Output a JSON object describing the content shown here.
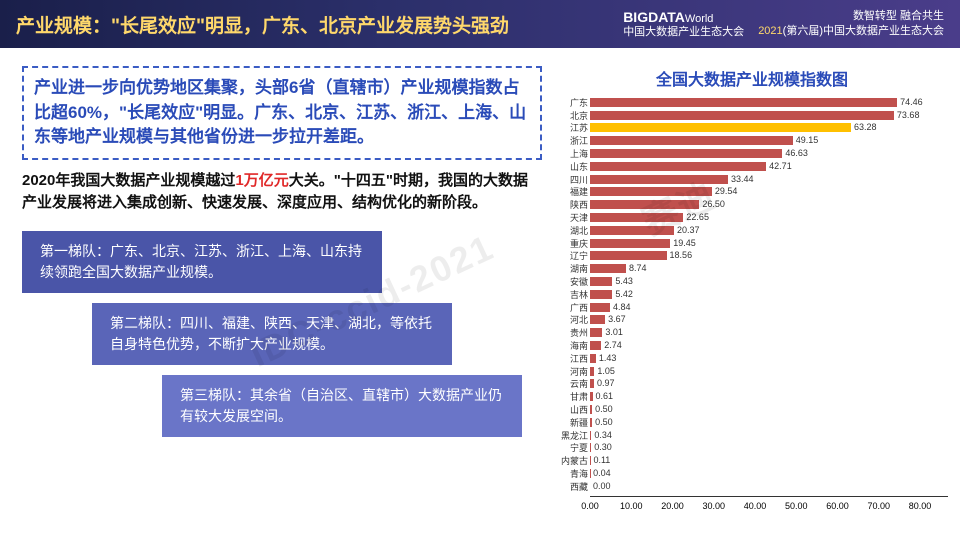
{
  "header": {
    "title": "产业规模：\"长尾效应\"明显，广东、北京产业发展势头强劲",
    "logo_big": "BIGDATA",
    "logo_world": "World",
    "logo_sub": "中国大数据产业生态大会",
    "right_line1": "数智转型  融合共生",
    "right_year": "2021",
    "right_line2": "(第六届)中国大数据产业生态大会"
  },
  "summary": "产业进一步向优势地区集聚，头部6省（直辖市）产业规模指数占比超60%，\"长尾效应\"明显。广东、北京、江苏、浙江、上海、山东等地产业规模与其他省份进一步拉开差距。",
  "paragraph_pre": "2020年我国大数据产业规模越过",
  "paragraph_hl": "1万亿元",
  "paragraph_post": "大关。\"十四五\"时期，我国的大数据产业发展将进入集成创新、快速发展、深度应用、结构优化的新阶段。",
  "tiers": [
    "第一梯队：广东、北京、江苏、浙江、上海、山东持续领跑全国大数据产业规模。",
    "第二梯队：四川、福建、陕西、天津、湖北，等依托自身特色优势，不断扩大产业规模。",
    "第三梯队：其余省（自治区、直辖市）大数据产业仍有较大发展空间。"
  ],
  "chart": {
    "title": "全国大数据产业规模指数图",
    "xmax": 80,
    "xticks": [
      "0.00",
      "10.00",
      "20.00",
      "30.00",
      "40.00",
      "50.00",
      "60.00",
      "70.00",
      "80.00"
    ],
    "default_color": "#c0504d",
    "alt_color": "#ffc000",
    "items": [
      {
        "label": "广东",
        "value": 74.46,
        "color": "#c0504d"
      },
      {
        "label": "北京",
        "value": 73.68,
        "color": "#c0504d"
      },
      {
        "label": "江苏",
        "value": 63.28,
        "color": "#ffc000"
      },
      {
        "label": "浙江",
        "value": 49.15,
        "color": "#c0504d"
      },
      {
        "label": "上海",
        "value": 46.63,
        "color": "#c0504d"
      },
      {
        "label": "山东",
        "value": 42.71,
        "color": "#c0504d"
      },
      {
        "label": "四川",
        "value": 33.44,
        "color": "#c0504d"
      },
      {
        "label": "福建",
        "value": 29.54,
        "color": "#c0504d"
      },
      {
        "label": "陕西",
        "value": 26.5,
        "color": "#c0504d"
      },
      {
        "label": "天津",
        "value": 22.65,
        "color": "#c0504d"
      },
      {
        "label": "湖北",
        "value": 20.37,
        "color": "#c0504d"
      },
      {
        "label": "重庆",
        "value": 19.45,
        "color": "#c0504d"
      },
      {
        "label": "辽宁",
        "value": 18.56,
        "color": "#c0504d"
      },
      {
        "label": "湖南",
        "value": 8.74,
        "color": "#c0504d"
      },
      {
        "label": "安徽",
        "value": 5.43,
        "color": "#c0504d"
      },
      {
        "label": "吉林",
        "value": 5.42,
        "color": "#c0504d"
      },
      {
        "label": "广西",
        "value": 4.84,
        "color": "#c0504d"
      },
      {
        "label": "河北",
        "value": 3.67,
        "color": "#c0504d"
      },
      {
        "label": "贵州",
        "value": 3.01,
        "color": "#c0504d"
      },
      {
        "label": "海南",
        "value": 2.74,
        "color": "#c0504d"
      },
      {
        "label": "江西",
        "value": 1.43,
        "color": "#c0504d"
      },
      {
        "label": "河南",
        "value": 1.05,
        "color": "#c0504d"
      },
      {
        "label": "云南",
        "value": 0.97,
        "color": "#c0504d"
      },
      {
        "label": "甘肃",
        "value": 0.61,
        "color": "#c0504d"
      },
      {
        "label": "山西",
        "value": 0.5,
        "color": "#c0504d"
      },
      {
        "label": "新疆",
        "value": 0.5,
        "color": "#c0504d"
      },
      {
        "label": "黑龙江",
        "value": 0.34,
        "color": "#c0504d"
      },
      {
        "label": "宁夏",
        "value": 0.3,
        "color": "#c0504d"
      },
      {
        "label": "内蒙古",
        "value": 0.11,
        "color": "#c0504d"
      },
      {
        "label": "青海",
        "value": 0.04,
        "color": "#c0504d"
      },
      {
        "label": "西藏",
        "value": 0.0,
        "color": "#c0504d"
      }
    ]
  },
  "watermarks": [
    "IDC-ccid-2021",
    "赛迪"
  ]
}
